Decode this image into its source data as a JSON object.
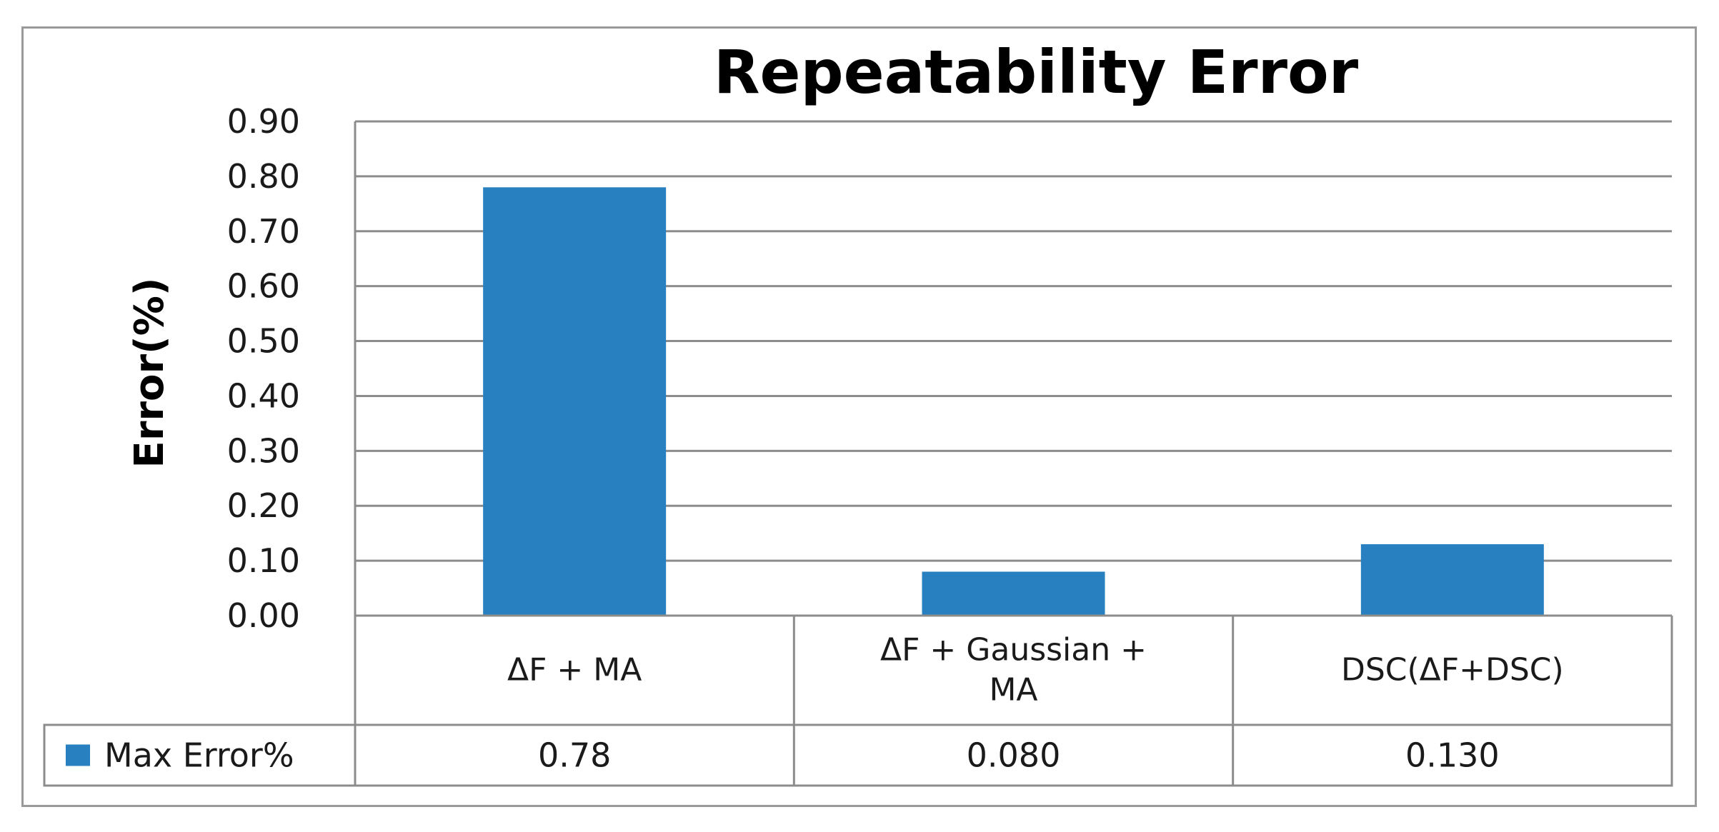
{
  "chart_data": {
    "type": "bar",
    "title": "Repeatability Error",
    "ylabel": "Error(%)",
    "xlabel": "",
    "ylim": [
      0,
      0.9
    ],
    "yticks": [
      "0.00",
      "0.10",
      "0.20",
      "0.30",
      "0.40",
      "0.50",
      "0.60",
      "0.70",
      "0.80",
      "0.90"
    ],
    "categories": [
      [
        "ΔF + MA"
      ],
      [
        "ΔF + Gaussian +",
        "MA"
      ],
      [
        "DSC(ΔF+DSC)"
      ]
    ],
    "series": [
      {
        "name": "Max Error%",
        "values": [
          0.78,
          0.08,
          0.13
        ],
        "value_labels": [
          "0.78",
          "0.080",
          "0.130"
        ],
        "color": "#2880c0"
      }
    ],
    "grid": true,
    "legend": "data-table-left"
  }
}
